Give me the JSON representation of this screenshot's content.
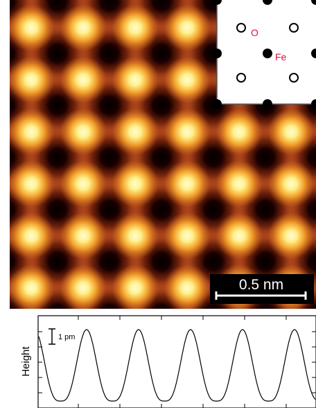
{
  "image": {
    "scale_bar": "0.5 nm"
  },
  "inset": {
    "label_o": "O",
    "label_fe": "Fe"
  },
  "profile": {
    "y_label": "Height",
    "scale_label": "1 pm"
  }
}
